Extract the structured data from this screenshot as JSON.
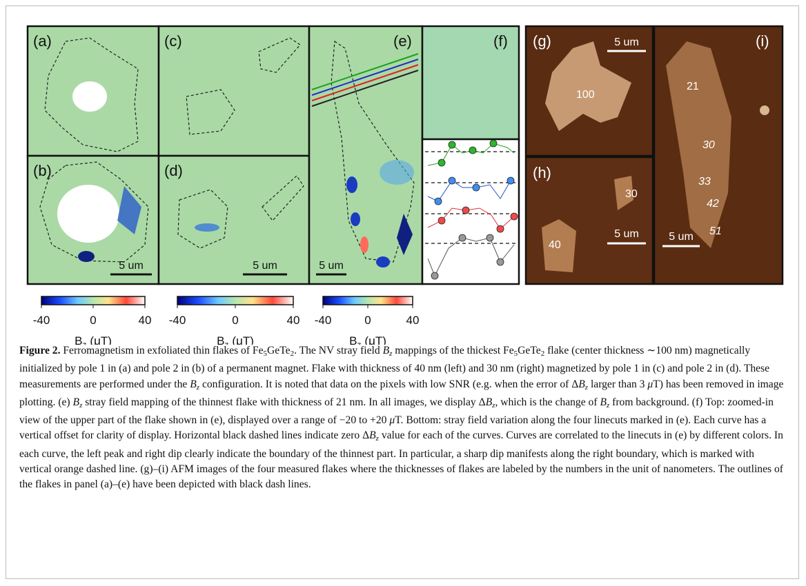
{
  "figure": {
    "panels": [
      {
        "label": "(a)"
      },
      {
        "label": "(b)",
        "scale_bar": "5 um"
      },
      {
        "label": "(c)"
      },
      {
        "label": "(d)",
        "scale_bar": "5 um"
      },
      {
        "label": "(e)",
        "scale_bar": "5 um"
      },
      {
        "label": "(f)"
      },
      {
        "label": "(g)",
        "scale_bar": "5 um",
        "thicknesses": [
          100
        ]
      },
      {
        "label": "(h)",
        "scale_bar": "5 um",
        "thicknesses": [
          30,
          40
        ]
      },
      {
        "label": "(i)",
        "scale_bar": "5 um",
        "thicknesses": [
          21,
          30,
          33,
          42,
          51
        ]
      }
    ],
    "colorbars": [
      {
        "ticks": [
          -40,
          0,
          40
        ],
        "symbol": "B",
        "subscript": "z",
        "unit": "(μT)"
      },
      {
        "ticks": [
          -40,
          0,
          40
        ],
        "symbol": "B",
        "subscript": "z",
        "unit": "(μT)"
      },
      {
        "ticks": [
          -40,
          0,
          40
        ],
        "symbol": "B",
        "subscript": "z",
        "unit": "(μT)"
      }
    ]
  },
  "caption": {
    "runs": [
      {
        "text": "Figure 2.",
        "style": "b"
      },
      {
        "text": " Ferromagnetism in exfoliated thin flakes of Fe"
      },
      {
        "text": "5",
        "style": "sub"
      },
      {
        "text": "GeTe"
      },
      {
        "text": "2",
        "style": "sub"
      },
      {
        "text": ". The NV stray field "
      },
      {
        "text": "B",
        "style": "i"
      },
      {
        "text": "z",
        "style": "isub"
      },
      {
        "text": " mappings of the thickest Fe"
      },
      {
        "text": "5",
        "style": "sub"
      },
      {
        "text": "GeTe"
      },
      {
        "text": "2",
        "style": "sub"
      },
      {
        "text": " flake (center thickness ∼100 nm) magnetically initialized by pole 1 in (a) and pole 2 in (b) of a permanent magnet. Flake with thickness of 40 nm (left) and 30 nm (right) magnetized by pole 1 in (c) and pole 2 in (d). These measurements are performed under the "
      },
      {
        "text": "B",
        "style": "i"
      },
      {
        "text": "z",
        "style": "isub"
      },
      {
        "text": " configuration. It is noted that data on the pixels with low SNR (e.g. when the error of Δ"
      },
      {
        "text": "B",
        "style": "i"
      },
      {
        "text": "z",
        "style": "isub"
      },
      {
        "text": " larger than 3 "
      },
      {
        "text": "μ",
        "style": "i"
      },
      {
        "text": "T) has been removed in image plotting. (e) "
      },
      {
        "text": "B",
        "style": "i"
      },
      {
        "text": "z",
        "style": "isub"
      },
      {
        "text": " stray field mapping of the thinnest flake with thickness of 21 nm. In all images, we display Δ"
      },
      {
        "text": "B",
        "style": "i"
      },
      {
        "text": "z",
        "style": "isub"
      },
      {
        "text": ", which is the change of "
      },
      {
        "text": "B",
        "style": "i"
      },
      {
        "text": "z",
        "style": "isub"
      },
      {
        "text": " from background. (f) Top: zoomed-in view of the upper part of the flake shown in (e), displayed over a range of −20 to +20 "
      },
      {
        "text": "μ",
        "style": "i"
      },
      {
        "text": "T. Bottom: stray field variation along the four linecuts marked in (e). Each curve has a vertical offset for clarity of display. Horizontal black dashed lines indicate zero Δ"
      },
      {
        "text": "B",
        "style": "i"
      },
      {
        "text": "z",
        "style": "isub"
      },
      {
        "text": " value for each of the curves. Curves are correlated to the linecuts in (e) by different colors. In each curve, the left peak and right dip clearly indicate the boundary of the thinnest part. In particular, a sharp dip manifests along the right boundary, which is marked with vertical orange dashed line. (g)–(i) AFM images of the four measured flakes where the thicknesses of flakes are labeled by the numbers in the unit of nanometers. The outlines of the flakes in panel (a)–(e) have been depicted with black dash lines."
      }
    ]
  }
}
